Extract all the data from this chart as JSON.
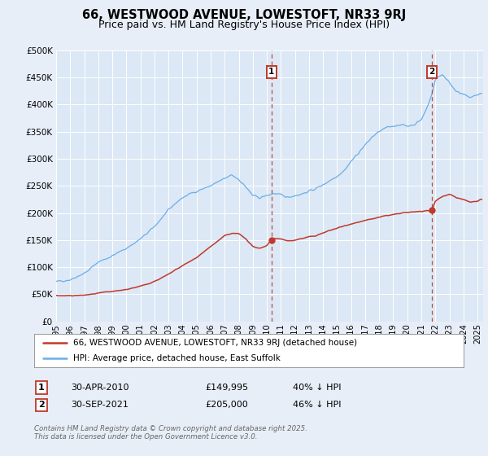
{
  "title": "66, WESTWOOD AVENUE, LOWESTOFT, NR33 9RJ",
  "subtitle": "Price paid vs. HM Land Registry's House Price Index (HPI)",
  "background_color": "#e8eef8",
  "plot_bg_color": "#dce8f5",
  "ylim": [
    0,
    500000
  ],
  "yticks": [
    0,
    50000,
    100000,
    150000,
    200000,
    250000,
    300000,
    350000,
    400000,
    450000,
    500000
  ],
  "ytick_labels": [
    "£0",
    "£50K",
    "£100K",
    "£150K",
    "£200K",
    "£250K",
    "£300K",
    "£350K",
    "£400K",
    "£450K",
    "£500K"
  ],
  "year_start": 1995,
  "year_end": 2025,
  "hpi_color": "#6aaee8",
  "price_color": "#c0392b",
  "marker1_date": 2010.33,
  "marker2_date": 2021.75,
  "legend_line1": "66, WESTWOOD AVENUE, LOWESTOFT, NR33 9RJ (detached house)",
  "legend_line2": "HPI: Average price, detached house, East Suffolk",
  "footer": "Contains HM Land Registry data © Crown copyright and database right 2025.\nThis data is licensed under the Open Government Licence v3.0.",
  "grid_color": "#ffffff",
  "title_fontsize": 10.5,
  "subtitle_fontsize": 9,
  "hpi_years": [
    1995.0,
    1995.083,
    1995.167,
    1995.25,
    1995.333,
    1995.417,
    1995.5,
    1995.583,
    1995.667,
    1995.75,
    1995.833,
    1995.917,
    1996.0,
    1996.083,
    1996.167,
    1996.25,
    1996.333,
    1996.417,
    1996.5,
    1996.583,
    1996.667,
    1996.75,
    1996.833,
    1996.917,
    1997.0,
    1997.083,
    1997.167,
    1997.25,
    1997.333,
    1997.417,
    1997.5,
    1997.583,
    1997.667,
    1997.75,
    1997.833,
    1997.917,
    1998.0,
    1998.5,
    1999.0,
    1999.5,
    2000.0,
    2000.5,
    2001.0,
    2001.5,
    2002.0,
    2002.5,
    2003.0,
    2003.5,
    2004.0,
    2004.5,
    2005.0,
    2005.5,
    2006.0,
    2006.5,
    2007.0,
    2007.5,
    2008.0,
    2008.5,
    2009.0,
    2009.5,
    2010.0,
    2010.5,
    2011.0,
    2011.5,
    2012.0,
    2012.5,
    2013.0,
    2013.5,
    2014.0,
    2014.5,
    2015.0,
    2015.5,
    2016.0,
    2016.5,
    2017.0,
    2017.5,
    2018.0,
    2018.5,
    2019.0,
    2019.5,
    2020.0,
    2020.5,
    2021.0,
    2021.25,
    2021.5,
    2021.75,
    2022.0,
    2022.25,
    2022.5,
    2022.75,
    2023.0,
    2023.25,
    2023.5,
    2023.75,
    2024.0,
    2024.25,
    2024.5,
    2024.75,
    2025.0,
    2025.2
  ],
  "hpi_vals": [
    73000,
    73500,
    74000,
    74500,
    74800,
    75000,
    75200,
    75500,
    75800,
    76000,
    76200,
    76500,
    77000,
    78000,
    79000,
    80000,
    81000,
    82000,
    83000,
    84000,
    85000,
    86000,
    87000,
    88000,
    89000,
    90000,
    91500,
    93000,
    95000,
    97000,
    99000,
    100500,
    102000,
    104000,
    106000,
    108000,
    110000,
    115000,
    121000,
    128000,
    135000,
    143000,
    152000,
    163000,
    175000,
    190000,
    205000,
    218000,
    228000,
    235000,
    240000,
    245000,
    250000,
    257000,
    263000,
    270000,
    262000,
    248000,
    232000,
    228000,
    232000,
    236000,
    233000,
    229000,
    232000,
    235000,
    240000,
    245000,
    252000,
    260000,
    268000,
    278000,
    295000,
    310000,
    325000,
    340000,
    350000,
    357000,
    360000,
    363000,
    360000,
    363000,
    372000,
    385000,
    400000,
    420000,
    445000,
    452000,
    455000,
    448000,
    440000,
    432000,
    425000,
    420000,
    418000,
    415000,
    413000,
    415000,
    418000,
    420000
  ],
  "price_years": [
    1995.0,
    1995.5,
    1996.0,
    1996.5,
    1997.0,
    1997.5,
    1998.0,
    1998.5,
    1999.0,
    1999.5,
    2000.0,
    2000.5,
    2001.0,
    2001.5,
    2002.0,
    2002.5,
    2003.0,
    2003.5,
    2004.0,
    2004.5,
    2005.0,
    2005.5,
    2006.0,
    2006.5,
    2007.0,
    2007.5,
    2008.0,
    2008.25,
    2008.5,
    2009.0,
    2009.5,
    2010.0,
    2010.33,
    2010.5,
    2011.0,
    2011.5,
    2012.0,
    2012.5,
    2013.0,
    2013.5,
    2014.0,
    2014.5,
    2015.0,
    2015.5,
    2016.0,
    2016.5,
    2017.0,
    2017.5,
    2018.0,
    2018.5,
    2019.0,
    2019.5,
    2020.0,
    2020.5,
    2021.0,
    2021.5,
    2021.75,
    2022.0,
    2022.5,
    2023.0,
    2023.5,
    2024.0,
    2024.5,
    2025.0,
    2025.2
  ],
  "price_vals": [
    48000,
    47000,
    47500,
    48000,
    48500,
    50000,
    52000,
    54000,
    55000,
    57000,
    59000,
    62000,
    65000,
    69000,
    74000,
    80000,
    87000,
    95000,
    103000,
    110000,
    118000,
    128000,
    138000,
    148000,
    158000,
    162000,
    162000,
    158000,
    152000,
    138000,
    135000,
    140000,
    149995,
    153000,
    152000,
    148000,
    150000,
    153000,
    156000,
    158000,
    163000,
    168000,
    172000,
    176000,
    180000,
    183000,
    186000,
    189000,
    192000,
    195000,
    197000,
    199000,
    201000,
    202000,
    203000,
    203500,
    205000,
    222000,
    230000,
    235000,
    228000,
    225000,
    220000,
    222000,
    225000
  ]
}
